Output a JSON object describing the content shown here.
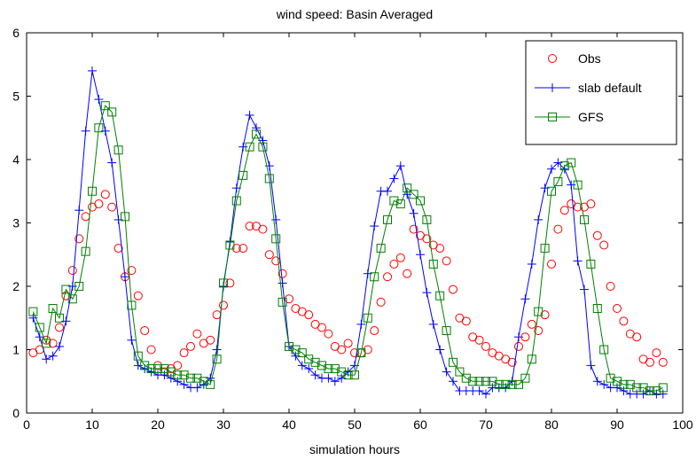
{
  "chart_data": {
    "type": "line",
    "title": "wind speed: Basin Averaged",
    "xlabel": "simulation hours",
    "ylabel": "",
    "xlim": [
      0,
      100
    ],
    "ylim": [
      0,
      6
    ],
    "xticks": [
      0,
      10,
      20,
      30,
      40,
      50,
      60,
      70,
      80,
      90,
      100
    ],
    "yticks": [
      0,
      1,
      2,
      3,
      4,
      5,
      6
    ],
    "grid": false,
    "legend_position": "top-right",
    "series": [
      {
        "name": "Obs",
        "color": "#ff0000",
        "marker": "circle",
        "line": false,
        "x": [
          1,
          2,
          3,
          4,
          5,
          6,
          7,
          8,
          9,
          10,
          11,
          12,
          13,
          14,
          15,
          16,
          17,
          18,
          19,
          20,
          21,
          22,
          23,
          24,
          25,
          26,
          27,
          28,
          29,
          30,
          31,
          32,
          33,
          34,
          35,
          36,
          37,
          38,
          39,
          40,
          41,
          42,
          43,
          44,
          45,
          46,
          47,
          48,
          49,
          50,
          51,
          52,
          53,
          54,
          55,
          56,
          57,
          58,
          59,
          60,
          61,
          62,
          63,
          64,
          65,
          66,
          67,
          68,
          69,
          70,
          71,
          72,
          73,
          74,
          75,
          76,
          77,
          78,
          79,
          80,
          81,
          82,
          83,
          84,
          85,
          86,
          87,
          88,
          89,
          90,
          91,
          92,
          93,
          94,
          95,
          96,
          97
        ],
        "y": [
          0.95,
          1.0,
          1.15,
          1.1,
          1.35,
          1.85,
          2.25,
          2.75,
          3.1,
          3.25,
          3.3,
          3.45,
          3.25,
          2.6,
          2.15,
          2.25,
          1.85,
          1.3,
          1.0,
          0.75,
          0.65,
          0.7,
          0.75,
          0.95,
          1.05,
          1.25,
          1.1,
          1.15,
          1.55,
          1.7,
          2.05,
          2.6,
          2.6,
          2.95,
          2.95,
          2.9,
          2.5,
          2.4,
          2.2,
          1.8,
          1.65,
          1.6,
          1.55,
          1.4,
          1.35,
          1.25,
          1.05,
          1.0,
          1.1,
          0.95,
          0.95,
          1.0,
          1.3,
          1.75,
          2.15,
          2.35,
          2.45,
          2.2,
          2.9,
          2.8,
          2.75,
          2.65,
          2.6,
          2.4,
          1.95,
          1.5,
          1.45,
          1.2,
          1.15,
          1.05,
          0.95,
          0.9,
          0.85,
          0.8,
          1.05,
          1.2,
          1.4,
          1.3,
          1.55,
          2.35,
          2.9,
          3.2,
          3.3,
          3.25,
          3.25,
          3.3,
          2.8,
          2.65,
          2.0,
          1.65,
          1.45,
          1.25,
          1.2,
          0.85,
          0.8,
          0.95,
          0.8
        ]
      },
      {
        "name": "slab default",
        "color": "#0000ff",
        "marker": "plus",
        "line": true,
        "x": [
          1,
          2,
          3,
          4,
          5,
          6,
          7,
          8,
          9,
          10,
          11,
          12,
          13,
          14,
          15,
          16,
          17,
          18,
          19,
          20,
          21,
          22,
          23,
          24,
          25,
          26,
          27,
          28,
          29,
          30,
          31,
          32,
          33,
          34,
          35,
          36,
          37,
          38,
          39,
          40,
          41,
          42,
          43,
          44,
          45,
          46,
          47,
          48,
          49,
          50,
          51,
          52,
          53,
          54,
          55,
          56,
          57,
          58,
          59,
          60,
          61,
          62,
          63,
          64,
          65,
          66,
          67,
          68,
          69,
          70,
          71,
          72,
          73,
          74,
          75,
          76,
          77,
          78,
          79,
          80,
          81,
          82,
          83,
          84,
          85,
          86,
          87,
          88,
          89,
          90,
          91,
          92,
          93,
          94,
          95,
          96,
          97
        ],
        "y": [
          1.5,
          1.2,
          0.85,
          0.9,
          1.05,
          1.45,
          2.0,
          3.2,
          4.45,
          5.4,
          4.95,
          4.45,
          3.95,
          3.05,
          2.15,
          1.15,
          0.75,
          0.7,
          0.65,
          0.6,
          0.6,
          0.55,
          0.5,
          0.45,
          0.4,
          0.4,
          0.45,
          0.55,
          1.0,
          2.0,
          2.7,
          3.55,
          4.2,
          4.7,
          4.5,
          4.3,
          3.9,
          3.05,
          2.05,
          1.05,
          0.9,
          0.75,
          0.7,
          0.6,
          0.55,
          0.55,
          0.5,
          0.55,
          0.65,
          0.75,
          1.4,
          2.2,
          2.95,
          3.5,
          3.5,
          3.7,
          3.9,
          3.45,
          3.15,
          2.5,
          1.9,
          1.4,
          1.0,
          0.65,
          0.5,
          0.35,
          0.35,
          0.35,
          0.35,
          0.3,
          0.4,
          0.4,
          0.4,
          0.5,
          1.2,
          1.8,
          2.35,
          3.05,
          3.55,
          3.85,
          3.95,
          3.85,
          3.6,
          2.4,
          1.95,
          0.75,
          0.5,
          0.45,
          0.4,
          0.4,
          0.35,
          0.3,
          0.3,
          0.3,
          0.35,
          0.3,
          0.3
        ]
      },
      {
        "name": "GFS",
        "color": "#008000",
        "marker": "square",
        "line": true,
        "x": [
          1,
          2,
          3,
          4,
          5,
          6,
          7,
          8,
          9,
          10,
          11,
          12,
          13,
          14,
          15,
          16,
          17,
          18,
          19,
          20,
          21,
          22,
          23,
          24,
          25,
          26,
          27,
          28,
          29,
          30,
          31,
          32,
          33,
          34,
          35,
          36,
          37,
          38,
          39,
          40,
          41,
          42,
          43,
          44,
          45,
          46,
          47,
          48,
          49,
          50,
          51,
          52,
          53,
          54,
          55,
          56,
          57,
          58,
          59,
          60,
          61,
          62,
          63,
          64,
          65,
          66,
          67,
          68,
          69,
          70,
          71,
          72,
          73,
          74,
          75,
          76,
          77,
          78,
          79,
          80,
          81,
          82,
          83,
          84,
          85,
          86,
          87,
          88,
          89,
          90,
          91,
          92,
          93,
          94,
          95,
          96,
          97
        ],
        "y": [
          1.6,
          1.35,
          1.1,
          1.65,
          1.5,
          1.95,
          1.8,
          2.0,
          2.55,
          3.5,
          4.5,
          4.85,
          4.75,
          4.15,
          3.1,
          1.7,
          0.9,
          0.75,
          0.7,
          0.7,
          0.7,
          0.65,
          0.6,
          0.6,
          0.55,
          0.55,
          0.5,
          0.45,
          0.85,
          2.05,
          2.65,
          3.35,
          3.75,
          4.2,
          4.4,
          4.2,
          3.7,
          2.75,
          1.75,
          1.05,
          1.0,
          0.95,
          0.85,
          0.8,
          0.75,
          0.7,
          0.7,
          0.65,
          0.6,
          0.6,
          0.95,
          1.5,
          2.15,
          2.6,
          3.05,
          3.35,
          3.3,
          3.55,
          3.45,
          3.35,
          3.05,
          2.35,
          1.85,
          1.3,
          0.8,
          0.65,
          0.55,
          0.5,
          0.5,
          0.5,
          0.5,
          0.45,
          0.45,
          0.45,
          0.45,
          0.55,
          0.85,
          1.6,
          2.6,
          3.5,
          3.65,
          3.9,
          3.95,
          3.6,
          3.05,
          2.35,
          1.65,
          1.0,
          0.55,
          0.5,
          0.45,
          0.45,
          0.4,
          0.4,
          0.35,
          0.35,
          0.4
        ]
      }
    ]
  }
}
